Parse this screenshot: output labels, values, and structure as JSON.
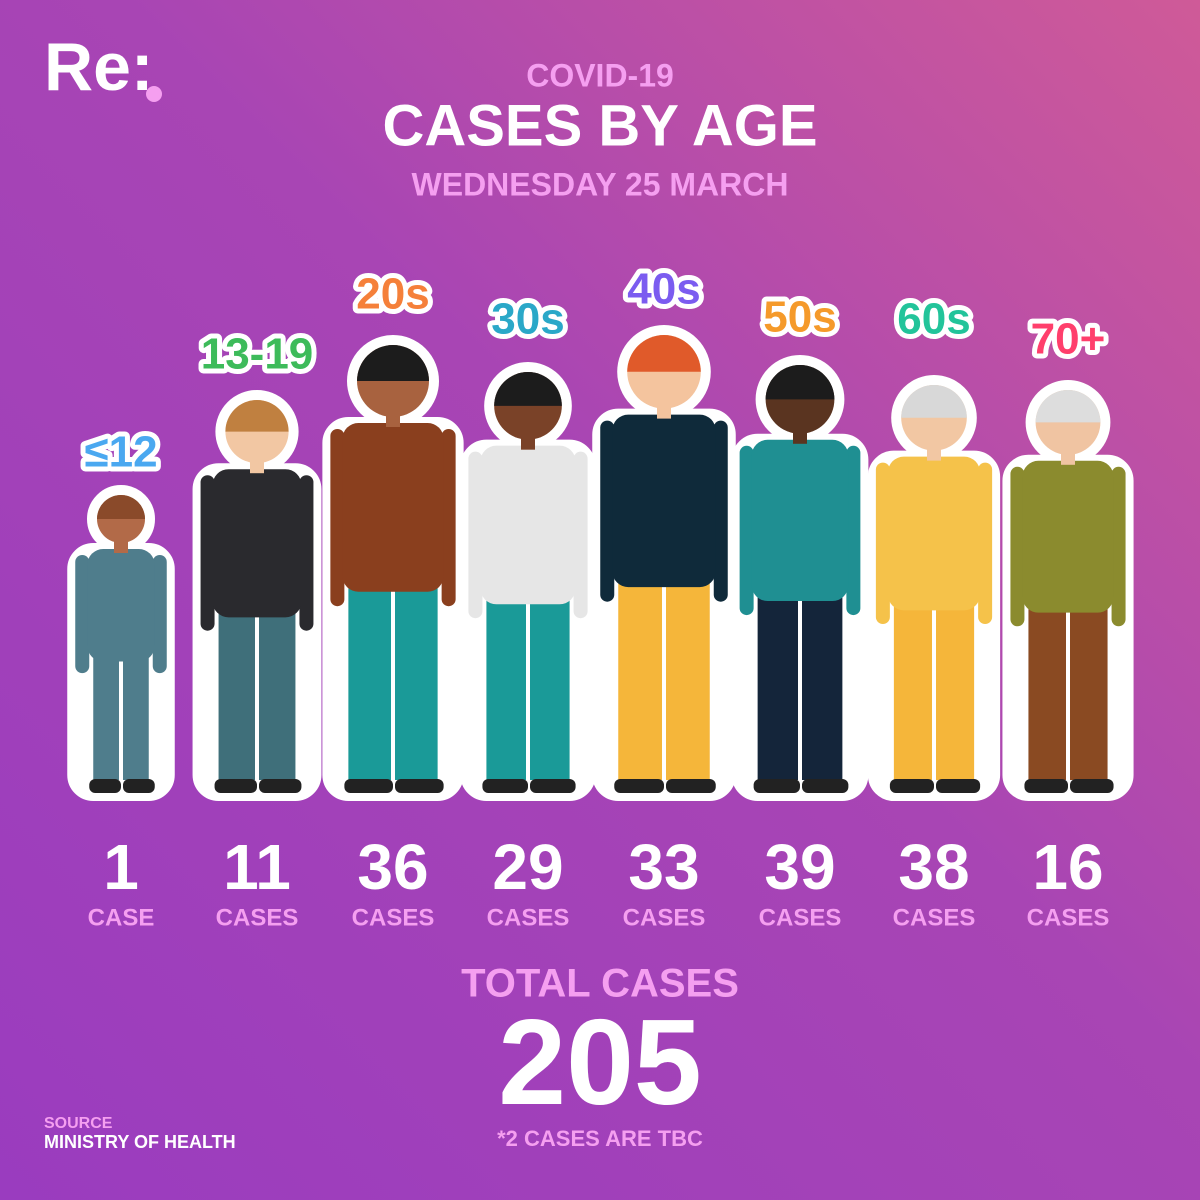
{
  "logo": "Re:",
  "header": {
    "kicker": "COVID-19",
    "title": "CASES BY AGE",
    "date": "WEDNESDAY 25 MARCH"
  },
  "groups": [
    {
      "age": "≤12",
      "count": "1",
      "unit": "CASE",
      "color": "#4aa8f0"
    },
    {
      "age": "13-19",
      "count": "11",
      "unit": "CASES",
      "color": "#3dbb5a"
    },
    {
      "age": "20s",
      "count": "36",
      "unit": "CASES",
      "color": "#f5803a"
    },
    {
      "age": "30s",
      "count": "29",
      "unit": "CASES",
      "color": "#2aa8c8"
    },
    {
      "age": "40s",
      "count": "33",
      "unit": "CASES",
      "color": "#7b5cf0"
    },
    {
      "age": "50s",
      "count": "39",
      "unit": "CASES",
      "color": "#f59a2a"
    },
    {
      "age": "60s",
      "count": "38",
      "unit": "CASES",
      "color": "#22c49a"
    },
    {
      "age": "70+",
      "count": "16",
      "unit": "CASES",
      "color": "#ff3f6c"
    }
  ],
  "total": {
    "label": "TOTAL CASES",
    "value": "205",
    "note": "*2 CASES ARE TBC"
  },
  "source": {
    "label": "SOURCE",
    "name": "MINISTRY OF HEALTH"
  }
}
